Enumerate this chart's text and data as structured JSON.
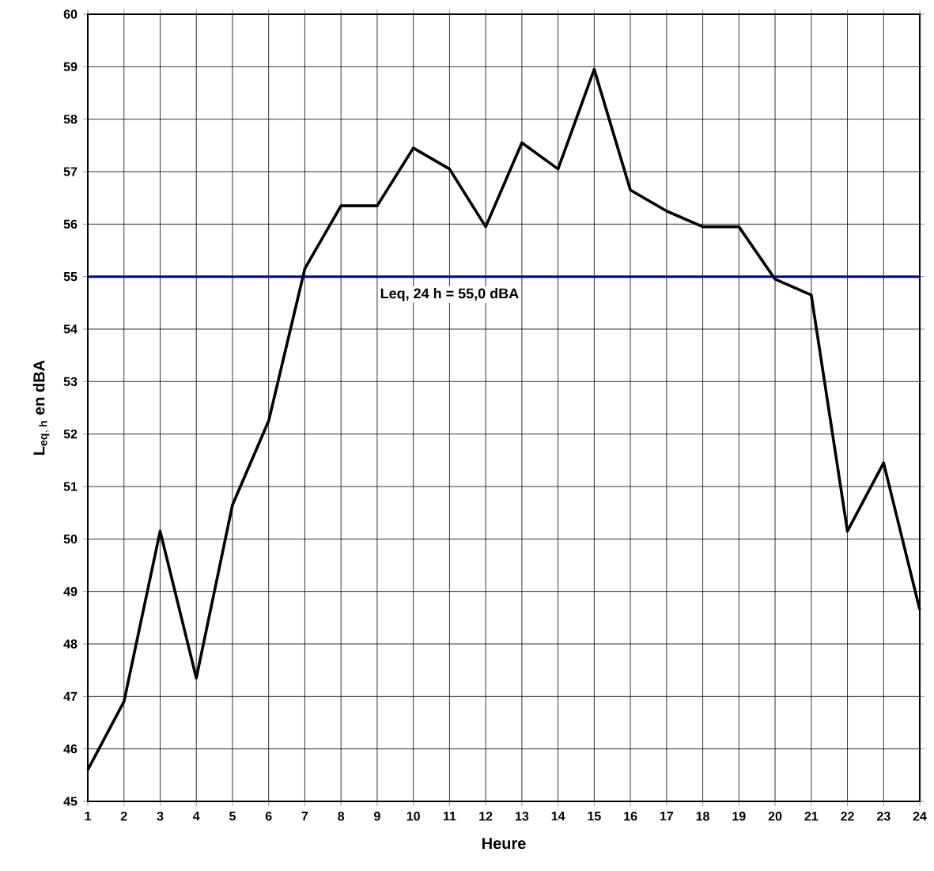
{
  "chart_data": {
    "type": "line",
    "xlabel": "Heure",
    "ylabel": "\\mathbf{L_{eq,\\,h}\\ en\\ dBA}",
    "x": [
      1,
      2,
      3,
      4,
      5,
      6,
      7,
      8,
      9,
      10,
      11,
      12,
      13,
      14,
      15,
      16,
      17,
      18,
      19,
      20,
      21,
      22,
      23,
      24
    ],
    "series": [
      {
        "color": "#000000",
        "values": [
          45.6,
          46.9,
          50.15,
          47.35,
          50.65,
          52.25,
          55.15,
          56.35,
          56.35,
          57.45,
          57.05,
          55.95,
          57.55,
          57.05,
          58.95,
          56.65,
          56.25,
          55.95,
          55.95,
          54.95,
          54.65,
          50.15,
          51.45,
          48.65
        ]
      }
    ],
    "xlim": [
      1,
      24
    ],
    "xticks": [
      1,
      2,
      3,
      4,
      5,
      6,
      7,
      8,
      9,
      10,
      11,
      12,
      13,
      14,
      15,
      16,
      17,
      18,
      19,
      20,
      21,
      22,
      23,
      24
    ],
    "ylim": [
      45,
      60
    ],
    "yticks": [
      45,
      46,
      47,
      48,
      49,
      50,
      51,
      52,
      53,
      54,
      55,
      56,
      57,
      58,
      59,
      60
    ],
    "ref_lines": [
      {
        "axis": "y",
        "value": 55,
        "label": "Leq, 24 h = 55,0 dBA",
        "color": "#000080"
      }
    ],
    "grid": true,
    "marker": "none",
    "line_style": "solid"
  }
}
